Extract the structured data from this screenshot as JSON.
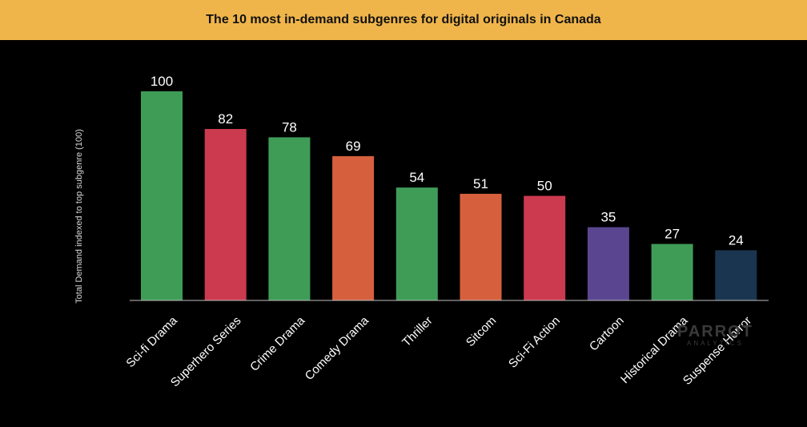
{
  "header": {
    "title": "The 10 most in-demand subgenres for digital originals in Canada"
  },
  "watermark": {
    "line1": "PARROT",
    "line2": "ANALYTICS"
  },
  "chart_data": {
    "type": "bar",
    "title": "The 10 most in-demand subgenres for digital originals in Canada",
    "xlabel": "",
    "ylabel": "Total Demand indexed to top subgenre (100)",
    "ylim": [
      0,
      100
    ],
    "grid": false,
    "legend": "none",
    "categories": [
      "Sci-fi Drama",
      "Superhero Series",
      "Crime Drama",
      "Comedy Drama",
      "Thriller",
      "Sitcom",
      "Sci-Fi Action",
      "Cartoon",
      "Historical Drama",
      "Suspense Horror"
    ],
    "values": [
      100,
      82,
      78,
      69,
      54,
      51,
      50,
      35,
      27,
      24
    ],
    "colors": [
      "#3f9c57",
      "#cc3a4f",
      "#3f9c57",
      "#d6603e",
      "#3f9c57",
      "#d6603e",
      "#cc3a4f",
      "#5a4690",
      "#3f9c57",
      "#1a3550"
    ],
    "axis_color": "#bfbfbf",
    "label_color": "#ffffff"
  }
}
